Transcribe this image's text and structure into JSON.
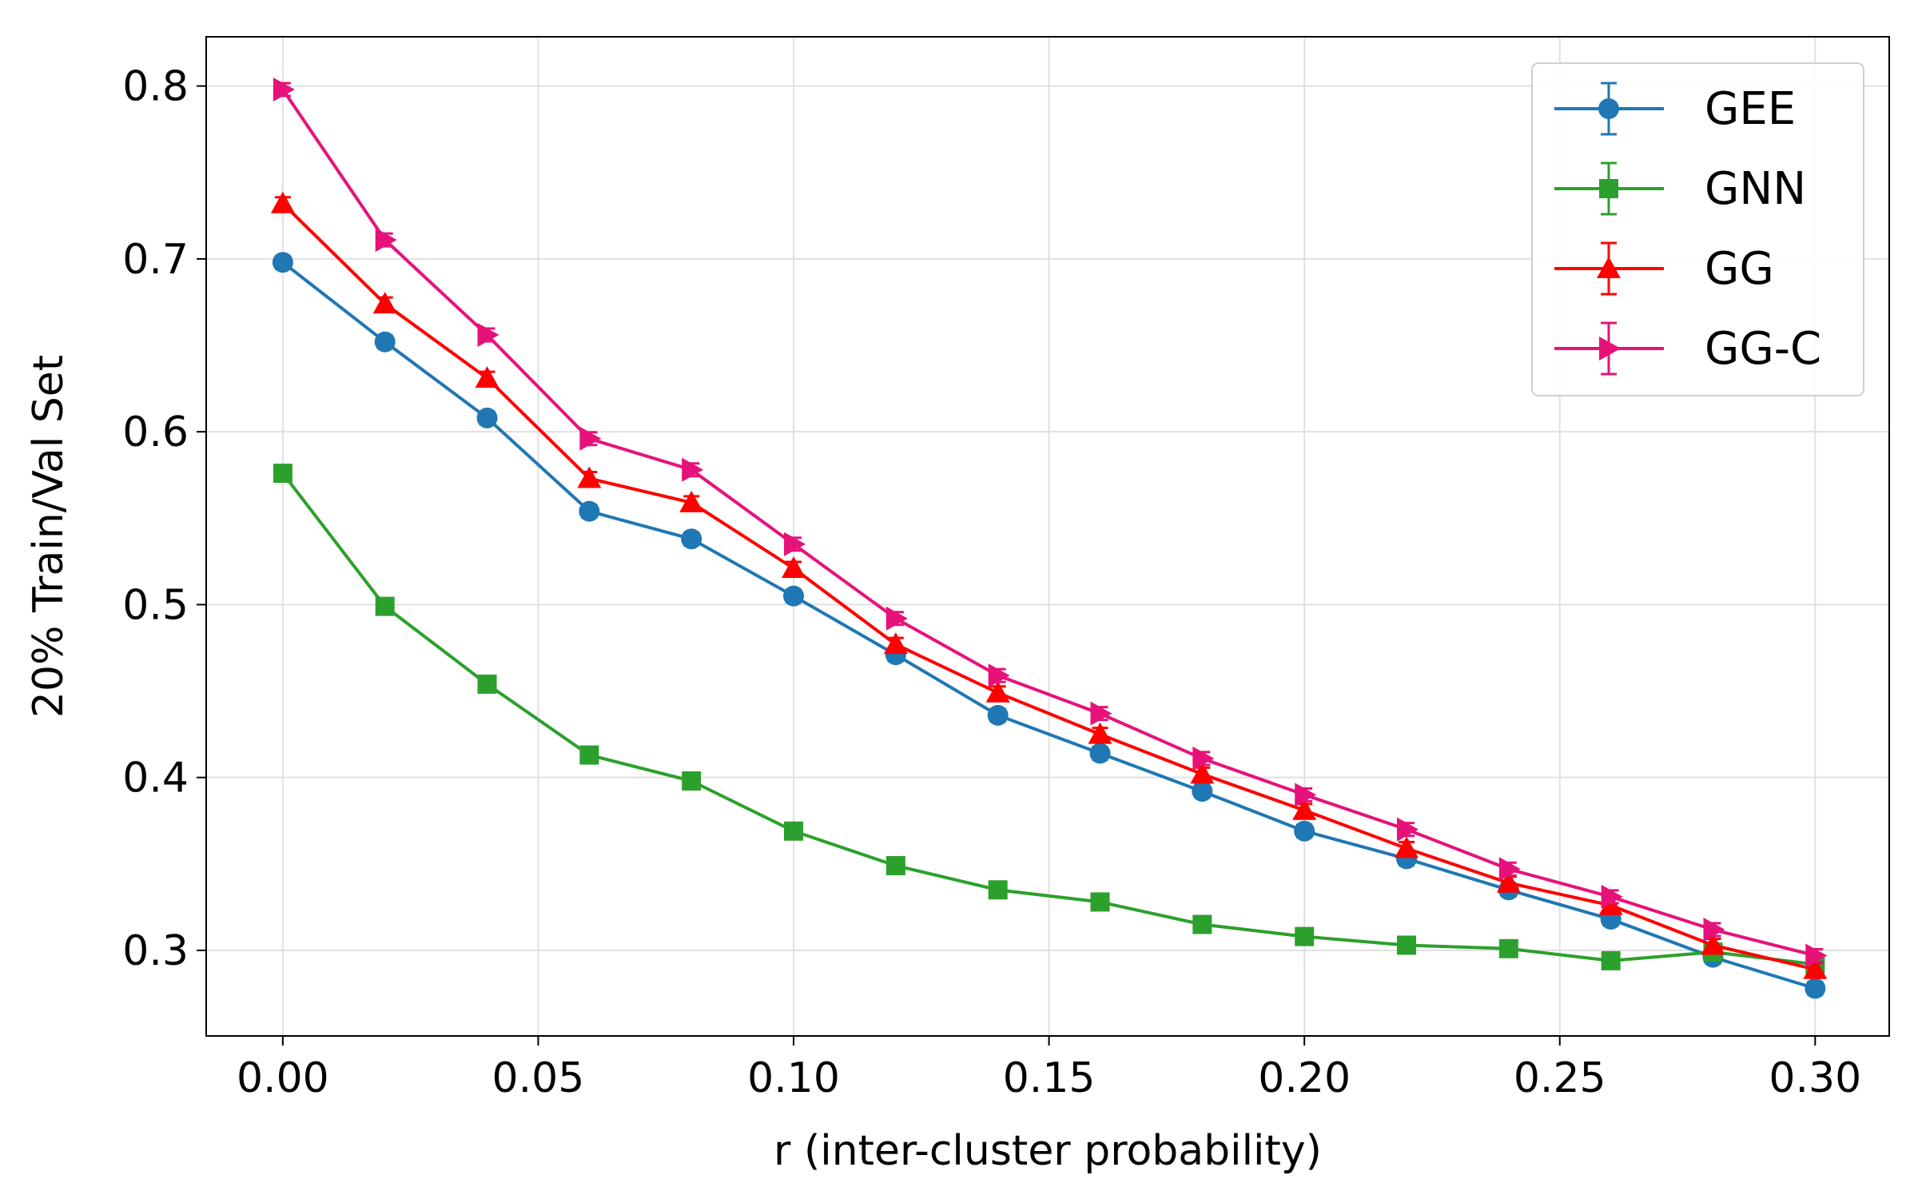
{
  "chart_data": {
    "type": "line",
    "title": "",
    "xlabel": "r (inter-cluster probability)",
    "ylabel": "20% Train/Val Set",
    "xlim": [
      -0.015,
      0.3145
    ],
    "ylim": [
      0.2505,
      0.8285
    ],
    "xticks": [
      0.0,
      0.05,
      0.1,
      0.15,
      0.2,
      0.25,
      0.3
    ],
    "xtick_labels": [
      "0.00",
      "0.05",
      "0.10",
      "0.15",
      "0.20",
      "0.25",
      "0.30"
    ],
    "yticks": [
      0.3,
      0.4,
      0.5,
      0.6,
      0.7,
      0.8
    ],
    "ytick_labels": [
      "0.3",
      "0.4",
      "0.5",
      "0.6",
      "0.7",
      "0.8"
    ],
    "grid": true,
    "legend_position": "top-right",
    "x": [
      0.0,
      0.02,
      0.04,
      0.06,
      0.08,
      0.1,
      0.12,
      0.14,
      0.16,
      0.18,
      0.2,
      0.22,
      0.24,
      0.26,
      0.28,
      0.3
    ],
    "series": [
      {
        "name": "GEE",
        "color": "#1f77b4",
        "marker": "circle",
        "values": [
          0.698,
          0.652,
          0.608,
          0.554,
          0.538,
          0.505,
          0.471,
          0.436,
          0.414,
          0.392,
          0.369,
          0.353,
          0.335,
          0.318,
          0.296,
          0.278
        ]
      },
      {
        "name": "GNN",
        "color": "#2ca02c",
        "marker": "square",
        "values": [
          0.576,
          0.499,
          0.454,
          0.413,
          0.398,
          0.369,
          0.349,
          0.335,
          0.328,
          0.315,
          0.308,
          0.303,
          0.301,
          0.294,
          0.299,
          0.292
        ]
      },
      {
        "name": "GG",
        "color": "#ff0000",
        "marker": "triangle-up",
        "values": [
          0.732,
          0.674,
          0.631,
          0.573,
          0.559,
          0.521,
          0.477,
          0.449,
          0.425,
          0.402,
          0.381,
          0.359,
          0.339,
          0.326,
          0.303,
          0.289
        ]
      },
      {
        "name": "GG-C",
        "color": "#e6127a",
        "marker": "triangle-right",
        "values": [
          0.798,
          0.711,
          0.656,
          0.596,
          0.578,
          0.535,
          0.492,
          0.459,
          0.437,
          0.411,
          0.39,
          0.37,
          0.347,
          0.331,
          0.312,
          0.297
        ]
      }
    ]
  }
}
